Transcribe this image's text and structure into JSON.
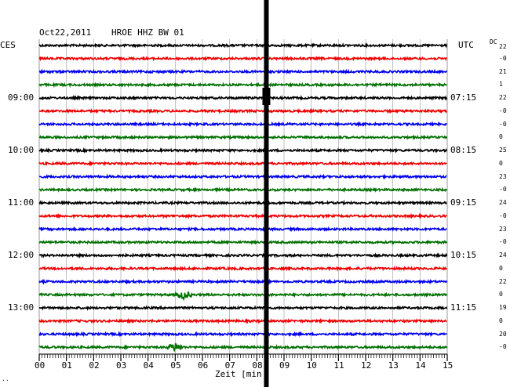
{
  "header": {
    "date": "Oct22,2011",
    "station": "HROE HHZ BW 01",
    "left_tz": "CES",
    "right_tz": "UTC",
    "dc_label": "DC",
    "dc_top": "22",
    "xlabel": "Zeit [min",
    "corner_mark": "··"
  },
  "colors": {
    "black": "#000000",
    "red": "#ee0000",
    "blue": "#0000ee",
    "green": "#007000",
    "grid": "#999999"
  },
  "chart_data": {
    "type": "line",
    "title": "Oct22,2011   HROE HHZ BW 01",
    "xlabel": "Zeit [min",
    "xlim": [
      0,
      15
    ],
    "x_ticks": [
      "00",
      "01",
      "02",
      "03",
      "04",
      "05",
      "06",
      "07",
      "08",
      "09",
      "10",
      "11",
      "12",
      "13",
      "14",
      "15"
    ],
    "trace_colors_cycle": [
      "black",
      "red",
      "blue",
      "green"
    ],
    "trace_count": 24,
    "left_hour_labels": [
      {
        "trace": 4,
        "label": "09:00"
      },
      {
        "trace": 8,
        "label": "10:00"
      },
      {
        "trace": 12,
        "label": "11:00"
      },
      {
        "trace": 16,
        "label": "12:00"
      },
      {
        "trace": 20,
        "label": "13:00"
      }
    ],
    "right_hour_labels": [
      {
        "trace": 4,
        "label": "07:15"
      },
      {
        "trace": 8,
        "label": "08:15"
      },
      {
        "trace": 12,
        "label": "09:15"
      },
      {
        "trace": 16,
        "label": "10:15"
      },
      {
        "trace": 20,
        "label": "11:15"
      }
    ],
    "dc_offsets": [
      "-0",
      "21",
      "1",
      "22",
      "-0",
      "-0",
      "0",
      "25",
      "0",
      "23",
      "-0",
      "24",
      "-0",
      "23",
      "-0",
      "24",
      "0",
      "22",
      "0",
      "19",
      "0",
      "20",
      "-0"
    ],
    "event_minute": 8.35,
    "event_amplitude": "saturated",
    "local_bursts": [
      {
        "trace": 19,
        "minute": 5.3
      },
      {
        "trace": 23,
        "minute": 5.0
      }
    ]
  }
}
